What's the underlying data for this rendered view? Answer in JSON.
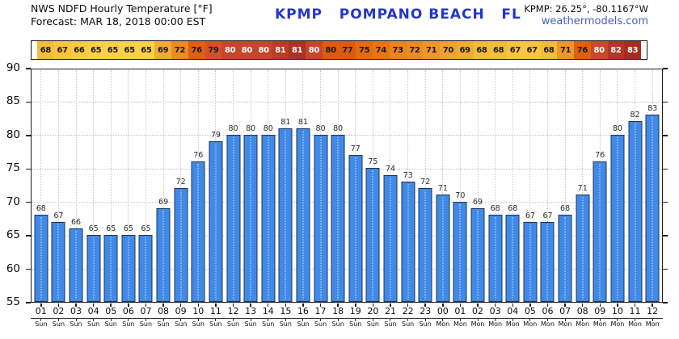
{
  "header": {
    "product_line1": "NWS NDFD Hourly Temperature [°F]",
    "product_line2": "Forecast: MAR 18, 2018 00:00 EST",
    "station_title": "KPMP   POMPANO BEACH   FL",
    "coordinates": "KPMP: 26.25°, -80.1167°W",
    "website": "weathermodels.com"
  },
  "colors": {
    "bar": "#4189E7",
    "bar_border": "#1c3557",
    "title_blue": "#2436C8",
    "link_blue": "#4460BE",
    "grid": "#BFBFBF",
    "spine": "#1a1a1a"
  },
  "chart_data": {
    "type": "bar",
    "title": "NWS NDFD Hourly Temperature [°F]",
    "subtitle": "Forecast: MAR 18, 2018 00:00 EST",
    "station": "KPMP POMPANO BEACH FL",
    "xlabel": "",
    "ylabel": "",
    "ylim": [
      55,
      90
    ],
    "yticks": [
      90,
      85,
      80,
      75,
      70,
      65,
      60,
      55
    ],
    "grid": "dotted",
    "legend": "none",
    "x_hours": [
      "01",
      "02",
      "03",
      "04",
      "05",
      "06",
      "07",
      "08",
      "09",
      "10",
      "11",
      "12",
      "13",
      "14",
      "15",
      "16",
      "17",
      "18",
      "19",
      "20",
      "21",
      "22",
      "23",
      "00",
      "01",
      "02",
      "03",
      "04",
      "05",
      "06",
      "07",
      "08",
      "09",
      "10",
      "11",
      "12"
    ],
    "x_days": [
      "Sun",
      "Sun",
      "Sun",
      "Sun",
      "Sun",
      "Sun",
      "Sun",
      "Sun",
      "Sun",
      "Sun",
      "Sun",
      "Sun",
      "Sun",
      "Sun",
      "Sun",
      "Sun",
      "Sun",
      "Sun",
      "Sun",
      "Sun",
      "Sun",
      "Sun",
      "Sun",
      "Mon",
      "Mon",
      "Mon",
      "Mon",
      "Mon",
      "Mon",
      "Mon",
      "Mon",
      "Mon",
      "Mon",
      "Mon",
      "Mon",
      "Mon"
    ],
    "values": [
      68,
      67,
      66,
      65,
      65,
      65,
      65,
      69,
      72,
      76,
      79,
      80,
      80,
      80,
      81,
      81,
      80,
      80,
      77,
      75,
      74,
      73,
      72,
      71,
      70,
      69,
      68,
      68,
      67,
      67,
      68,
      71,
      76,
      80,
      82,
      83
    ],
    "strip_cells": [
      {
        "t": "68",
        "bg": "#F4BC3F",
        "fg": "#1a1a1a"
      },
      {
        "t": "67",
        "bg": "#F7C543",
        "fg": "#1a1a1a"
      },
      {
        "t": "66",
        "bg": "#F8CB46",
        "fg": "#1a1a1a"
      },
      {
        "t": "65",
        "bg": "#FAD14A",
        "fg": "#1a1a1a"
      },
      {
        "t": "65",
        "bg": "#FAD14A",
        "fg": "#1a1a1a"
      },
      {
        "t": "65",
        "bg": "#FAD14A",
        "fg": "#1a1a1a"
      },
      {
        "t": "65",
        "bg": "#FAD14A",
        "fg": "#1a1a1a"
      },
      {
        "t": "69",
        "bg": "#F1AC37",
        "fg": "#1a1a1a"
      },
      {
        "t": "72",
        "bg": "#EA8B28",
        "fg": "#1a1a1a"
      },
      {
        "t": "76",
        "bg": "#DD6113",
        "fg": "#1a1a1a"
      },
      {
        "t": "79",
        "bg": "#D25129",
        "fg": "#1a1a1a"
      },
      {
        "t": "80",
        "bg": "#C2472B",
        "fg": "#ffffff"
      },
      {
        "t": "80",
        "bg": "#C2472B",
        "fg": "#ffffff"
      },
      {
        "t": "80",
        "bg": "#C2472B",
        "fg": "#ffffff"
      },
      {
        "t": "81",
        "bg": "#B83D28",
        "fg": "#ffffff"
      },
      {
        "t": "81",
        "bg": "#A83423",
        "fg": "#ffffff"
      },
      {
        "t": "80",
        "bg": "#C2472B",
        "fg": "#ffffff"
      },
      {
        "t": "80",
        "bg": "#DA5C13",
        "fg": "#1a1a1a"
      },
      {
        "t": "77",
        "bg": "#DA5C12",
        "fg": "#1a1a1a"
      },
      {
        "t": "75",
        "bg": "#E26C15",
        "fg": "#1a1a1a"
      },
      {
        "t": "74",
        "bg": "#E57618",
        "fg": "#1a1a1a"
      },
      {
        "t": "73",
        "bg": "#E88326",
        "fg": "#1a1a1a"
      },
      {
        "t": "72",
        "bg": "#EA8B28",
        "fg": "#1a1a1a"
      },
      {
        "t": "71",
        "bg": "#ED982F",
        "fg": "#1a1a1a"
      },
      {
        "t": "70",
        "bg": "#EFA133",
        "fg": "#1a1a1a"
      },
      {
        "t": "69",
        "bg": "#F1AC37",
        "fg": "#1a1a1a"
      },
      {
        "t": "68",
        "bg": "#F4BC3F",
        "fg": "#1a1a1a"
      },
      {
        "t": "68",
        "bg": "#F4BC3F",
        "fg": "#1a1a1a"
      },
      {
        "t": "67",
        "bg": "#F7C543",
        "fg": "#1a1a1a"
      },
      {
        "t": "67",
        "bg": "#F7C543",
        "fg": "#1a1a1a"
      },
      {
        "t": "68",
        "bg": "#F4BC3F",
        "fg": "#1a1a1a"
      },
      {
        "t": "71",
        "bg": "#ED982F",
        "fg": "#1a1a1a"
      },
      {
        "t": "76",
        "bg": "#DD6113",
        "fg": "#1a1a1a"
      },
      {
        "t": "80",
        "bg": "#C5492B",
        "fg": "#ffffff"
      },
      {
        "t": "82",
        "bg": "#B13729",
        "fg": "#ffffff"
      },
      {
        "t": "83",
        "bg": "#A52C21",
        "fg": "#ffffff"
      }
    ]
  }
}
